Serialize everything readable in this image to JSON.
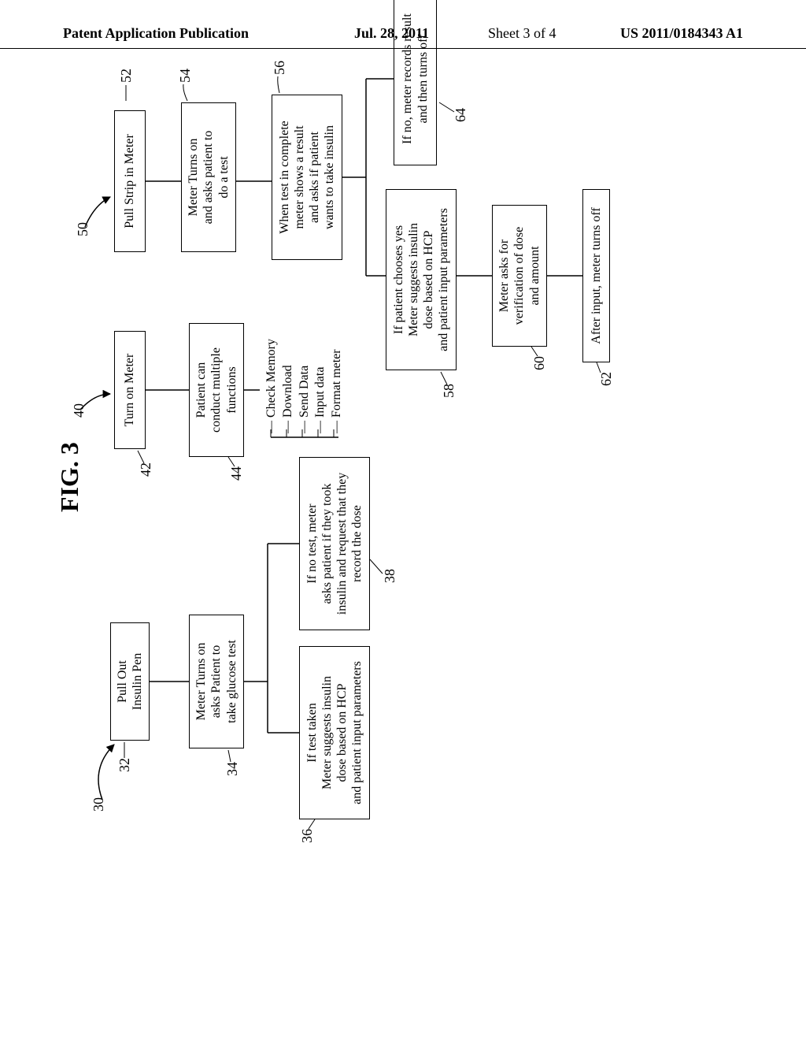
{
  "header": {
    "left": "Patent Application Publication",
    "date": "Jul. 28, 2011",
    "sheet": "Sheet 3 of 4",
    "pubno": "US 2011/0184343 A1"
  },
  "fig_label": "FIG. 3",
  "refs": {
    "r30": "30",
    "r32": "32",
    "r34": "34",
    "r36": "36",
    "r38": "38",
    "r40": "40",
    "r42": "42",
    "r44": "44",
    "r50": "50",
    "r52": "52",
    "r54": "54",
    "r56": "56",
    "r58": "58",
    "r60": "60",
    "r62": "62",
    "r64": "64"
  },
  "boxes": {
    "b32": "Pull Out\nInsulin Pen",
    "b34": "Meter Turns on\nasks Patient to\ntake glucose test",
    "b36": "If test taken\nMeter suggests insulin\ndose based on HCP\nand patient input parameters",
    "b38": "If no test, meter\nasks patient if they took\ninsulin and request that they\nrecord the dose",
    "b42": "Turn on Meter",
    "b44": "Patient can\nconduct multiple\nfunctions",
    "b52": "Pull Strip in Meter",
    "b54": "Meter Turns on\nand asks patient to\ndo a test",
    "b56": "When test in complete\nmeter shows a result\nand asks if patient\nwants to take insulin",
    "b58": "If patient chooses yes\nMeter suggests insulin\ndose based on HCP\nand patient input parameters",
    "b64": "If no, meter records result\nand then turns off",
    "b60": "Meter asks for\nverification of dose\nand amount",
    "b62": "After input, meter turns off"
  },
  "funclist": {
    "f1": "Check Memory",
    "f2": "Download",
    "f3": "Send Data",
    "f4": "Input data",
    "f5": "Format meter"
  }
}
